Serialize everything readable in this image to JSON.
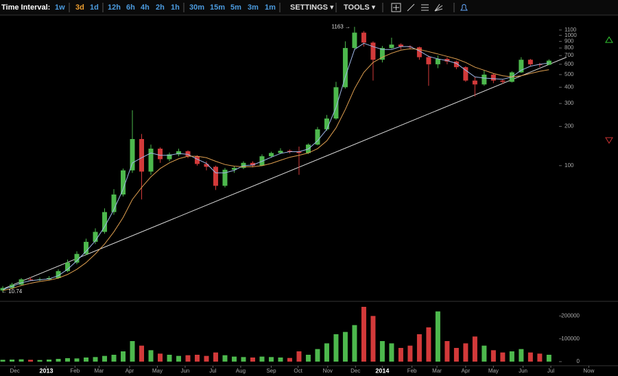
{
  "toolbar": {
    "label": "Time Interval:",
    "intervals": [
      "1w",
      "3d",
      "1d",
      "12h",
      "6h",
      "4h",
      "2h",
      "1h",
      "30m",
      "15m",
      "5m",
      "3m",
      "1m"
    ],
    "active": "3d",
    "settings": "SETTINGS ▾",
    "tools": "TOOLS ▾"
  },
  "chart_data": {
    "type": "candlestick",
    "log_scale": true,
    "grid": false,
    "up_color": "#4db84d",
    "down_color": "#d23a3a",
    "x": [
      3,
      13,
      23,
      33,
      43,
      53,
      63,
      73,
      83,
      93,
      103,
      113,
      123,
      133,
      143,
      153,
      163,
      173,
      183,
      193,
      203,
      213,
      223,
      233,
      243,
      253,
      263,
      273,
      283,
      293,
      303,
      313,
      323,
      333,
      343,
      353,
      363,
      373,
      383,
      393,
      403,
      413,
      423,
      433,
      443,
      453,
      463,
      473,
      483,
      493,
      503,
      513,
      523,
      533,
      543,
      553,
      563,
      573,
      583,
      593
    ],
    "open": [
      11.0,
      11.5,
      12.2,
      13.4,
      13.3,
      13.4,
      13.7,
      15.5,
      18,
      21,
      26,
      31,
      44,
      60,
      92,
      160,
      90,
      135,
      112,
      122,
      129,
      118,
      103,
      98,
      70,
      93,
      96,
      105,
      100,
      118,
      125,
      130,
      128,
      125,
      145,
      190,
      230,
      400,
      800,
      1050,
      880,
      650,
      800,
      850,
      820,
      810,
      680,
      600,
      660,
      630,
      570,
      450,
      420,
      500,
      450,
      440,
      520,
      650,
      600,
      595
    ],
    "high": [
      11.9,
      12.6,
      13.7,
      13.9,
      13.8,
      14.2,
      16,
      19,
      22,
      27.5,
      33,
      47,
      66,
      95,
      266,
      175,
      145,
      138,
      126,
      135,
      131,
      120,
      108,
      100,
      96,
      99,
      108,
      108,
      122,
      128,
      136,
      133,
      140,
      148,
      198,
      245,
      440,
      900,
      1163,
      1080,
      900,
      830,
      960,
      870,
      840,
      820,
      700,
      700,
      680,
      640,
      580,
      480,
      540,
      510,
      460,
      530,
      680,
      660,
      615,
      655
    ],
    "low": [
      10.74,
      11.3,
      12.0,
      13.0,
      13.0,
      13.2,
      13.5,
      15.2,
      17.5,
      20.5,
      25,
      30,
      42,
      58,
      88,
      55,
      85,
      105,
      108,
      118,
      114,
      100,
      92,
      65,
      68,
      88,
      94,
      97,
      99,
      115,
      123,
      124,
      85,
      123,
      143,
      185,
      225,
      390,
      780,
      820,
      450,
      620,
      790,
      780,
      780,
      650,
      410,
      560,
      600,
      550,
      440,
      340,
      410,
      430,
      425,
      435,
      515,
      580,
      570,
      590
    ],
    "close": [
      11.5,
      12.2,
      13.4,
      13.3,
      13.4,
      13.7,
      15.5,
      18,
      21,
      26,
      31,
      44,
      60,
      92,
      160,
      90,
      135,
      112,
      122,
      129,
      118,
      103,
      98,
      70,
      93,
      96,
      105,
      100,
      118,
      125,
      130,
      128,
      125,
      145,
      190,
      230,
      400,
      800,
      1050,
      880,
      650,
      800,
      850,
      820,
      810,
      680,
      600,
      660,
      630,
      570,
      450,
      420,
      500,
      450,
      440,
      520,
      650,
      600,
      595,
      640
    ],
    "volume": [
      8000,
      9000,
      10000,
      8000,
      7000,
      9000,
      12000,
      15000,
      14000,
      18000,
      20000,
      25000,
      30000,
      45000,
      90000,
      70000,
      50000,
      35000,
      30000,
      25000,
      28000,
      30000,
      25000,
      40000,
      28000,
      22000,
      20000,
      18000,
      22000,
      20000,
      18000,
      16000,
      45000,
      30000,
      55000,
      80000,
      120000,
      130000,
      160000,
      240000,
      200000,
      90000,
      80000,
      60000,
      70000,
      120000,
      150000,
      220000,
      90000,
      60000,
      80000,
      110000,
      70000,
      50000,
      40000,
      45000,
      55000,
      40000,
      35000,
      30000
    ],
    "ma_lines": [
      {
        "color": "#9fb8e8",
        "values": [
          11.2,
          11.8,
          12.6,
          13.1,
          13.3,
          13.5,
          14.3,
          16,
          18.6,
          22,
          26.5,
          34,
          46,
          66,
          105,
          115,
          125,
          120,
          120,
          124,
          122,
          112,
          104,
          88,
          88,
          92,
          100,
          101,
          108,
          116,
          124,
          128,
          128,
          134,
          155,
          190,
          280,
          480,
          780,
          870,
          820,
          780,
          780,
          820,
          820,
          760,
          690,
          660,
          640,
          610,
          540,
          480,
          470,
          465,
          460,
          480,
          540,
          580,
          600,
          615
        ]
      },
      {
        "color": "#e0a050",
        "values": [
          11,
          11.4,
          12,
          12.5,
          12.9,
          13.2,
          13.7,
          14.6,
          16,
          18,
          21,
          25,
          31,
          40,
          55,
          68,
          82,
          95,
          105,
          113,
          118,
          118,
          115,
          108,
          102,
          99,
          98,
          98,
          100,
          104,
          110,
          116,
          120,
          125,
          135,
          155,
          195,
          270,
          390,
          520,
          620,
          680,
          730,
          770,
          790,
          780,
          750,
          720,
          690,
          660,
          620,
          570,
          540,
          510,
          490,
          480,
          490,
          510,
          530,
          545
        ]
      }
    ],
    "trendline": {
      "color": "#dddddd",
      "x": [
        3,
        612
      ],
      "y": [
        11.3,
        680
      ]
    },
    "annotations": [
      {
        "value": 1163,
        "label": "1163 →"
      },
      {
        "value": 10.74,
        "label": "← 10.74"
      }
    ],
    "xlim": [
      0,
      652
    ],
    "xticks": [
      {
        "value": 16,
        "label": "Dec"
      },
      {
        "value": 50,
        "label": "2013"
      },
      {
        "value": 81,
        "label": "Feb"
      },
      {
        "value": 107,
        "label": "Mar"
      },
      {
        "value": 140,
        "label": "Apr"
      },
      {
        "value": 170,
        "label": "May"
      },
      {
        "value": 200,
        "label": "Jun"
      },
      {
        "value": 230,
        "label": "Jul"
      },
      {
        "value": 260,
        "label": "Aug"
      },
      {
        "value": 293,
        "label": "Sep"
      },
      {
        "value": 322,
        "label": "Oct"
      },
      {
        "value": 354,
        "label": "Nov"
      },
      {
        "value": 384,
        "label": "Dec"
      },
      {
        "value": 413,
        "label": "2014"
      },
      {
        "value": 445,
        "label": "Feb"
      },
      {
        "value": 472,
        "label": "Mar"
      },
      {
        "value": 503,
        "label": "Apr"
      },
      {
        "value": 533,
        "label": "May"
      },
      {
        "value": 565,
        "label": "Jun"
      },
      {
        "value": 595,
        "label": "Jul"
      },
      {
        "value": 636,
        "label": "Now"
      }
    ],
    "ylim": [
      9.3,
      1300
    ],
    "yticks": [
      1100,
      1000,
      900,
      800,
      700,
      600,
      500,
      400,
      300,
      200,
      100
    ],
    "vlim": [
      0,
      240000
    ],
    "vticks": [
      0,
      100000,
      200000
    ]
  }
}
